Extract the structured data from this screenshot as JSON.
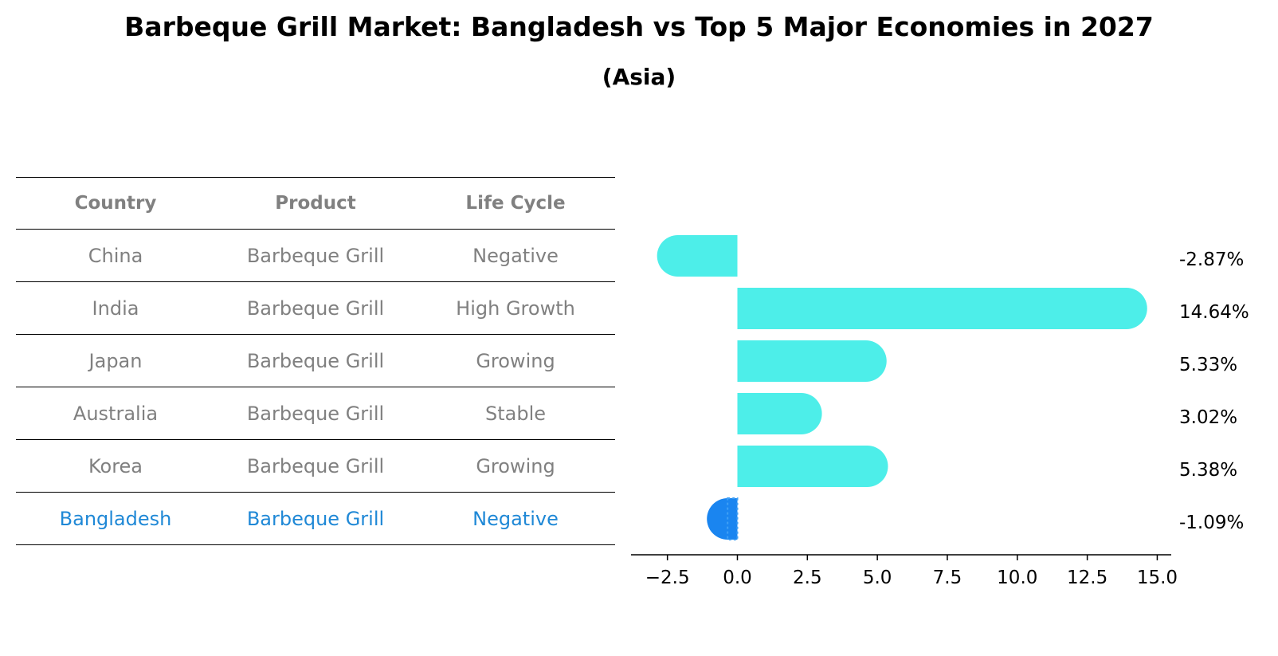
{
  "title": "Barbeque Grill Market: Bangladesh vs Top 5 Major Economies in 2027",
  "subtitle": "(Asia)",
  "table": {
    "headers": [
      "Country",
      "Product",
      "Life Cycle"
    ],
    "rows": [
      {
        "country": "China",
        "product": "Barbeque Grill",
        "life_cycle": "Negative"
      },
      {
        "country": "India",
        "product": "Barbeque Grill",
        "life_cycle": "High Growth"
      },
      {
        "country": "Japan",
        "product": "Barbeque Grill",
        "life_cycle": "Growing"
      },
      {
        "country": "Australia",
        "product": "Barbeque Grill",
        "life_cycle": "Stable"
      },
      {
        "country": "Korea",
        "product": "Barbeque Grill",
        "life_cycle": "Growing"
      },
      {
        "country": "Bangladesh",
        "product": "Barbeque Grill",
        "life_cycle": "Negative"
      }
    ]
  },
  "chart_data": {
    "type": "bar",
    "orientation": "horizontal",
    "categories": [
      "China",
      "India",
      "Japan",
      "Australia",
      "Korea",
      "Bangladesh"
    ],
    "values": [
      -2.87,
      14.64,
      5.33,
      3.02,
      5.38,
      -1.09
    ],
    "value_labels": [
      "-2.87%",
      "14.64%",
      "5.33%",
      "3.02%",
      "5.38%",
      "-1.09%"
    ],
    "xlim": [
      -3.8,
      15.5
    ],
    "xticks": [
      -2.5,
      0.0,
      2.5,
      5.0,
      7.5,
      10.0,
      12.5,
      15.0
    ],
    "xtick_labels": [
      "−2.5",
      "0.0",
      "2.5",
      "5.0",
      "7.5",
      "10.0",
      "12.5",
      "15.0"
    ],
    "highlight": "Bangladesh",
    "colors": {
      "default": "#4deee9",
      "highlight": "#1a85f0"
    }
  }
}
